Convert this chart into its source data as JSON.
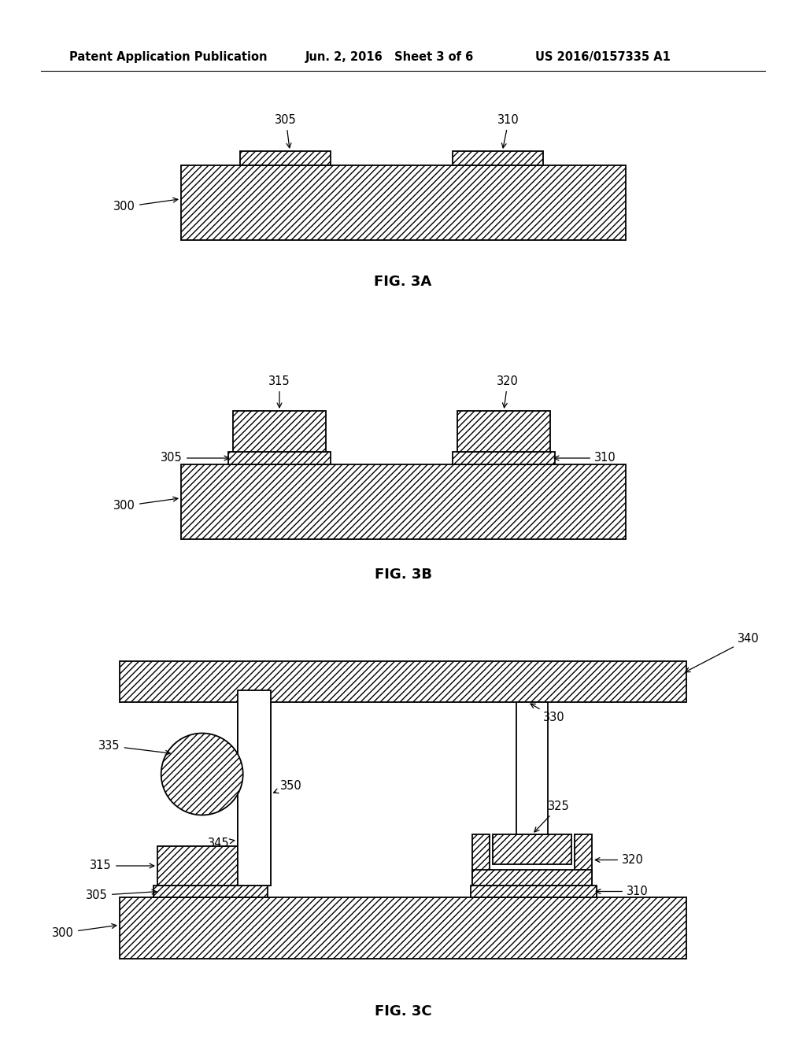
{
  "background_color": "#ffffff",
  "header_left": "Patent Application Publication",
  "header_mid": "Jun. 2, 2016   Sheet 3 of 6",
  "header_right": "US 2016/0157335 A1"
}
